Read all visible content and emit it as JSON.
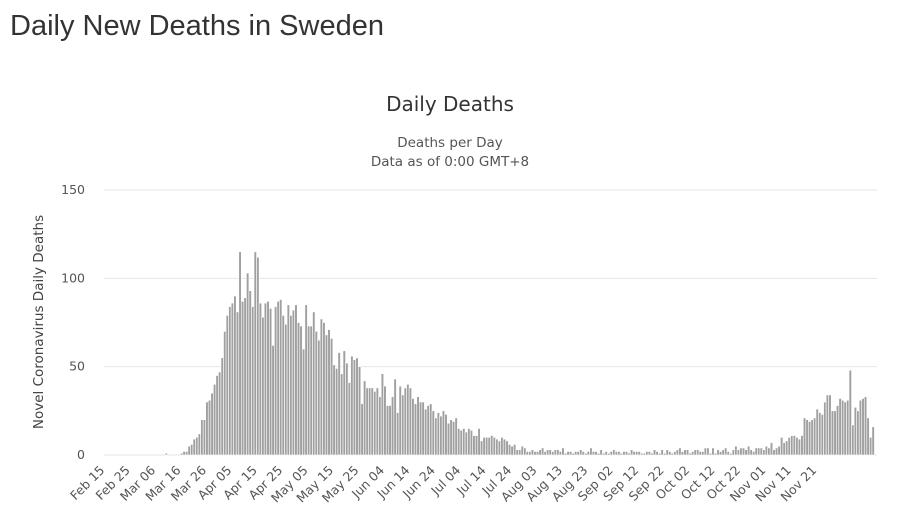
{
  "page": {
    "title": "Daily New Deaths in Sweden"
  },
  "chart_data": {
    "type": "bar",
    "title": "Daily Deaths",
    "subtitle_lines": [
      "Deaths per Day",
      "Data as of 0:00 GMT+8"
    ],
    "ylabel": "Novel Coronavirus Daily Deaths",
    "xlabel": "",
    "ylim": [
      0,
      150
    ],
    "yticks": [
      0,
      50,
      100,
      150
    ],
    "start_date": "Feb 15",
    "xtick_labels": [
      "Feb 15",
      "Feb 25",
      "Mar 06",
      "Mar 16",
      "Mar 26",
      "Apr 05",
      "Apr 15",
      "Apr 25",
      "May 05",
      "May 15",
      "May 25",
      "Jun 04",
      "Jun 14",
      "Jun 24",
      "Jul 04",
      "Jul 14",
      "Jul 24",
      "Aug 03",
      "Aug 13",
      "Aug 23",
      "Sep 02",
      "Sep 12",
      "Sep 22",
      "Oct 02",
      "Oct 12",
      "Oct 22",
      "Nov 01",
      "Nov 11",
      "Nov 21"
    ],
    "xtick_step_days": 10,
    "grid": true,
    "legend": "none",
    "bar_color": "#a0a0a0",
    "series": [
      {
        "name": "Daily Deaths",
        "values": [
          0,
          0,
          0,
          0,
          0,
          0,
          0,
          0,
          0,
          0,
          0,
          0,
          0,
          0,
          0,
          0,
          0,
          0,
          0,
          0,
          0,
          0,
          0,
          0,
          1,
          0,
          0,
          0,
          0,
          0,
          1,
          2,
          2,
          5,
          6,
          9,
          10,
          12,
          20,
          20,
          30,
          31,
          35,
          40,
          45,
          47,
          55,
          70,
          79,
          84,
          86,
          90,
          81,
          115,
          87,
          89,
          103,
          93,
          84,
          115,
          112,
          86,
          78,
          86,
          87,
          83,
          62,
          84,
          87,
          88,
          79,
          74,
          85,
          79,
          82,
          85,
          75,
          73,
          60,
          85,
          73,
          73,
          81,
          70,
          65,
          77,
          75,
          68,
          71,
          66,
          51,
          49,
          58,
          46,
          59,
          52,
          41,
          56,
          54,
          55,
          50,
          29,
          42,
          38,
          38,
          38,
          36,
          38,
          33,
          46,
          39,
          28,
          28,
          33,
          43,
          24,
          39,
          34,
          38,
          40,
          38,
          32,
          29,
          33,
          30,
          30,
          26,
          28,
          29,
          25,
          21,
          24,
          22,
          25,
          23,
          18,
          20,
          19,
          21,
          15,
          14,
          15,
          13,
          15,
          14,
          11,
          11,
          15,
          8,
          10,
          10,
          10,
          11,
          10,
          9,
          8,
          10,
          9,
          8,
          6,
          5,
          6,
          3,
          3,
          5,
          4,
          2,
          2,
          3,
          2,
          2,
          3,
          4,
          2,
          3,
          3,
          2,
          3,
          3,
          2,
          4,
          1,
          2,
          2,
          1,
          2,
          2,
          3,
          2,
          1,
          2,
          4,
          2,
          2,
          1,
          3,
          1,
          2,
          1,
          2,
          3,
          2,
          2,
          1,
          2,
          2,
          1,
          3,
          2,
          2,
          2,
          1,
          1,
          2,
          2,
          1,
          3,
          2,
          1,
          3,
          1,
          3,
          2,
          1,
          2,
          3,
          4,
          2,
          3,
          3,
          1,
          2,
          3,
          3,
          2,
          2,
          4,
          4,
          1,
          4,
          1,
          3,
          2,
          3,
          4,
          2,
          1,
          3,
          5,
          3,
          4,
          4,
          3,
          5,
          3,
          2,
          4,
          4,
          4,
          3,
          5,
          4,
          7,
          3,
          4,
          5,
          10,
          7,
          8,
          10,
          11,
          11,
          10,
          9,
          11,
          21,
          20,
          19,
          20,
          21,
          26,
          24,
          23,
          30,
          34,
          34,
          25,
          25,
          28,
          32,
          31,
          30,
          31,
          48,
          17,
          27,
          25,
          31,
          32,
          33,
          21,
          10,
          16,
          0
        ]
      }
    ]
  }
}
